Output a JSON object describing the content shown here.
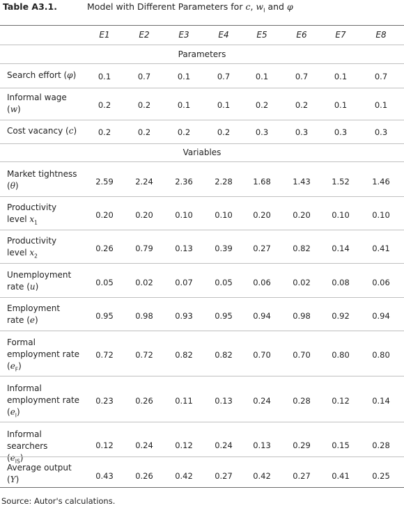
{
  "table": {
    "label": "Table A3.1.",
    "title_prefix": "Model with Different Parameters for ",
    "title_c": "c",
    "title_w": "w",
    "title_w_sub": "I",
    "title_and": " and ",
    "title_phi": "φ",
    "columns": [
      "E1",
      "E2",
      "E3",
      "E4",
      "E5",
      "E6",
      "E7",
      "E8"
    ],
    "sections": {
      "parameters": "Parameters",
      "variables": "Variables"
    },
    "rows": [
      {
        "label": "Search effort (",
        "sym": "φ",
        "sub": "",
        "tail": ")",
        "values": [
          "0.1",
          "0.7",
          "0.1",
          "0.7",
          "0.1",
          "0.7",
          "0.1",
          "0.7"
        ]
      },
      {
        "label": "Informal wage",
        "label2": "(",
        "sym": "w",
        "sub": "",
        "tail": ")",
        "values": [
          "0.2",
          "0.2",
          "0.1",
          "0.1",
          "0.2",
          "0.2",
          "0.1",
          "0.1"
        ]
      },
      {
        "label": "Cost vacancy (",
        "sym": "c",
        "sub": "",
        "tail": ")",
        "values": [
          "0.2",
          "0.2",
          "0.2",
          "0.2",
          "0.3",
          "0.3",
          "0.3",
          "0.3"
        ]
      },
      {
        "label": "Market tightness",
        "label2": "(",
        "sym": "θ",
        "sub": "",
        "tail": ")",
        "values": [
          "2.59",
          "2.24",
          "2.36",
          "2.28",
          "1.68",
          "1.43",
          "1.52",
          "1.46"
        ]
      },
      {
        "label": "Productivity",
        "label2": "level ",
        "sym": "x",
        "sub": "1",
        "tail": "",
        "values": [
          "0.20",
          "0.20",
          "0.10",
          "0.10",
          "0.20",
          "0.20",
          "0.10",
          "0.10"
        ]
      },
      {
        "label": "Productivity",
        "label2": "level ",
        "sym": "x",
        "sub": "2",
        "tail": "",
        "values": [
          "0.26",
          "0.79",
          "0.13",
          "0.39",
          "0.27",
          "0.82",
          "0.14",
          "0.41"
        ]
      },
      {
        "label": "Unemployment",
        "label2": "rate (",
        "sym": "u",
        "sub": "",
        "tail": ")",
        "values": [
          "0.05",
          "0.02",
          "0.07",
          "0.05",
          "0.06",
          "0.02",
          "0.08",
          "0.06"
        ]
      },
      {
        "label": "Employment",
        "label2": "rate (",
        "sym": "e",
        "sub": "",
        "tail": ")",
        "values": [
          "0.95",
          "0.98",
          "0.93",
          "0.95",
          "0.94",
          "0.98",
          "0.92",
          "0.94"
        ]
      },
      {
        "label": "Formal",
        "label2": "employment rate",
        "label3": "(",
        "sym": "e",
        "sub": "F",
        "tail": ")",
        "values": [
          "0.72",
          "0.72",
          "0.82",
          "0.82",
          "0.70",
          "0.70",
          "0.80",
          "0.80"
        ]
      },
      {
        "label": "Informal",
        "label2": "employment rate",
        "label3": "(",
        "sym": "e",
        "sub": "I",
        "tail": ")",
        "values": [
          "0.23",
          "0.26",
          "0.11",
          "0.13",
          "0.24",
          "0.28",
          "0.12",
          "0.14"
        ]
      },
      {
        "label": "Informal searchers",
        "label2": "(",
        "sym": "e",
        "sub": "IS",
        "tail": ")",
        "values": [
          "0.12",
          "0.24",
          "0.12",
          "0.24",
          "0.13",
          "0.29",
          "0.15",
          "0.28"
        ]
      },
      {
        "label": "Average output",
        "label2": "(",
        "sym": "Y",
        "sub": "",
        "tail": ")",
        "values": [
          "0.43",
          "0.26",
          "0.42",
          "0.27",
          "0.42",
          "0.27",
          "0.41",
          "0.25"
        ]
      }
    ],
    "source": "Source: Autor's calculations."
  }
}
